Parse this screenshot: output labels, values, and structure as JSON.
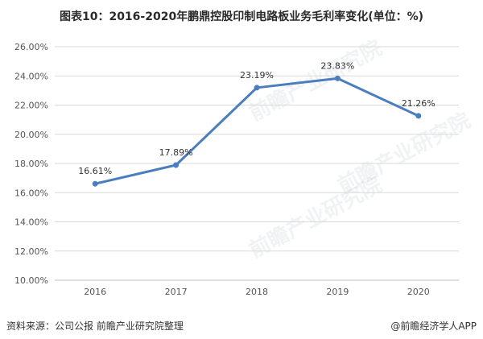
{
  "title": "图表10：2016-2020年鹏鼎控股印制电路板业务毛利率变化(单位：%)",
  "footer": {
    "source": "资料来源：公司公报 前瞻产业研究院整理",
    "brand": "@前瞻经济学人APP"
  },
  "watermarks": [
    "前瞻产业研究院",
    "前瞻产业研究院",
    "前瞻产业研究院"
  ],
  "colors": {
    "line": "#4a7ebf",
    "grid": "#d9d9d9",
    "axis_text": "#555555"
  },
  "chart_data": {
    "type": "line",
    "title": "图表10：2016-2020年鹏鼎控股印制电路板业务毛利率变化(单位：%)",
    "xlabel": "",
    "ylabel": "",
    "categories": [
      "2016",
      "2017",
      "2018",
      "2019",
      "2020"
    ],
    "series": [
      {
        "values": [
          16.61,
          17.89,
          23.19,
          23.83,
          21.26
        ],
        "labels": [
          "16.61%",
          "17.89%",
          "23.19%",
          "23.83%",
          "21.26%"
        ]
      }
    ],
    "ylim": [
      10,
      26
    ],
    "yticks": [
      10,
      12,
      14,
      16,
      18,
      20,
      22,
      24,
      26
    ],
    "ytick_labels": [
      "10.00%",
      "12.00%",
      "14.00%",
      "16.00%",
      "18.00%",
      "20.00%",
      "22.00%",
      "24.00%",
      "26.00%"
    ],
    "grid": true,
    "legend": "none"
  }
}
